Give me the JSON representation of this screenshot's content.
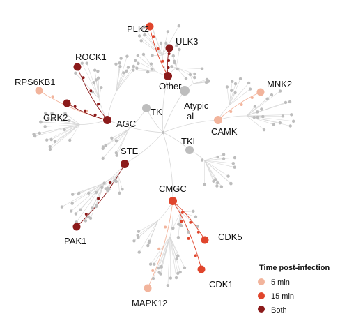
{
  "colors": {
    "branch": "#d7d7d7",
    "inactive": "#bdbdbd",
    "min5": "#f2b49c",
    "min15": "#e0452c",
    "both": "#8b1a1a"
  },
  "groups": [
    {
      "key": "tk",
      "label": "TK"
    },
    {
      "key": "atypical",
      "label": "Atypical"
    },
    {
      "key": "other",
      "label": "Other"
    },
    {
      "key": "agc",
      "label": "AGC"
    },
    {
      "key": "camk",
      "label": "CAMK"
    },
    {
      "key": "ste",
      "label": "STE"
    },
    {
      "key": "tkl",
      "label": "TKL"
    },
    {
      "key": "cmgc",
      "label": "CMGC"
    }
  ],
  "kinases": [
    {
      "key": "plk2",
      "label": "PLK2",
      "status": "15 min"
    },
    {
      "key": "ulk3",
      "label": "ULK3",
      "status": "Both"
    },
    {
      "key": "rock1",
      "label": "ROCK1",
      "status": "Both"
    },
    {
      "key": "rps6kb1",
      "label": "RPS6KB1",
      "status": "5 min"
    },
    {
      "key": "grk2",
      "label": "GRK2",
      "status": "Both"
    },
    {
      "key": "mnk2",
      "label": "MNK2",
      "status": "5 min"
    },
    {
      "key": "pak1",
      "label": "PAK1",
      "status": "Both"
    },
    {
      "key": "cdk5",
      "label": "CDK5",
      "status": "15 min"
    },
    {
      "key": "cdk1",
      "label": "CDK1",
      "status": "15 min"
    },
    {
      "key": "mapk12",
      "label": "MAPK12",
      "status": "5 min"
    }
  ],
  "legend": {
    "title": "Time post-infection",
    "items": [
      {
        "label": "5 min",
        "color": "#f2b49c"
      },
      {
        "label": "15 min",
        "color": "#e0452c"
      },
      {
        "label": "Both",
        "color": "#8b1a1a"
      }
    ]
  }
}
